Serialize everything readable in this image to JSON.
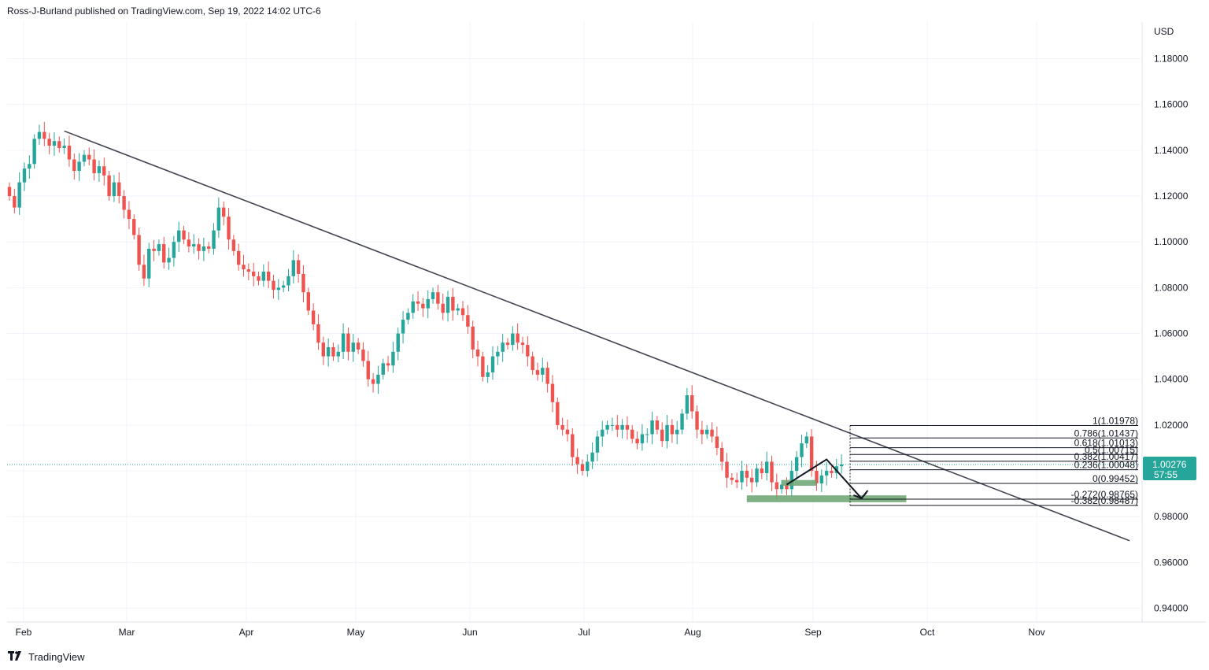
{
  "header": {
    "text": "Ross-J-Burland published on TradingView.com, Sep 19, 2022 14:02 UTC-6"
  },
  "footer": {
    "brand": "TradingView",
    "logo": "tv-logo-icon"
  },
  "chart_data": {
    "type": "candlestick",
    "currency": "USD",
    "y_ticks": [
      "1.18000",
      "1.16000",
      "1.14000",
      "1.12000",
      "1.10000",
      "1.08000",
      "1.06000",
      "1.04000",
      "1.02000",
      "1.00000",
      "0.98000",
      "0.96000",
      "0.94000"
    ],
    "ylim": [
      0.934,
      1.196
    ],
    "x_ticks": [
      "Feb",
      "Mar",
      "Apr",
      "May",
      "Jun",
      "Jul",
      "Aug",
      "Sep",
      "Oct",
      "Nov"
    ],
    "last_price": "1.00276",
    "countdown": "57:55",
    "colors": {
      "up": "#26a69a",
      "down": "#ef5350",
      "trendline": "#434651",
      "zone": "#6aa36f",
      "price_line": "#26a69a"
    },
    "closes": [
      1.12,
      1.115,
      1.126,
      1.132,
      1.134,
      1.145,
      1.148,
      1.145,
      1.142,
      1.144,
      1.141,
      1.142,
      1.136,
      1.131,
      1.135,
      1.138,
      1.136,
      1.13,
      1.133,
      1.129,
      1.12,
      1.126,
      1.12,
      1.114,
      1.11,
      1.103,
      1.09,
      1.084,
      1.097,
      1.096,
      1.099,
      1.091,
      1.093,
      1.1,
      1.105,
      1.101,
      1.098,
      1.099,
      1.096,
      1.098,
      1.097,
      1.105,
      1.115,
      1.111,
      1.101,
      1.096,
      1.09,
      1.088,
      1.087,
      1.085,
      1.083,
      1.087,
      1.083,
      1.079,
      1.08,
      1.081,
      1.085,
      1.092,
      1.086,
      1.078,
      1.07,
      1.064,
      1.056,
      1.05,
      1.054,
      1.05,
      1.052,
      1.06,
      1.052,
      1.056,
      1.053,
      1.048,
      1.04,
      1.038,
      1.042,
      1.047,
      1.046,
      1.052,
      1.06,
      1.066,
      1.069,
      1.074,
      1.073,
      1.071,
      1.075,
      1.078,
      1.073,
      1.069,
      1.076,
      1.07,
      1.071,
      1.068,
      1.063,
      1.053,
      1.05,
      1.041,
      1.043,
      1.05,
      1.052,
      1.056,
      1.055,
      1.06,
      1.056,
      1.055,
      1.05,
      1.044,
      1.042,
      1.045,
      1.038,
      1.03,
      1.02,
      1.018,
      1.016,
      1.006,
      1.003,
      1.0,
      1.004,
      1.008,
      1.015,
      1.018,
      1.02,
      1.02,
      1.018,
      1.02,
      1.018,
      1.014,
      1.012,
      1.016,
      1.016,
      1.022,
      1.018,
      1.013,
      1.02,
      1.016,
      1.018,
      1.025,
      1.033,
      1.026,
      1.018,
      1.016,
      1.018,
      1.015,
      1.01,
      1.004,
      0.997,
      0.996,
      0.995,
      1.0,
      0.997,
      0.995,
      1.001,
      0.999,
      1.004,
      0.995,
      0.992,
      0.994,
      0.992,
      1.0,
      1.006,
      1.012,
      1.015,
      1.0,
      0.9945,
      0.998,
      1.0,
      0.999,
      1.002,
      1.0028
    ],
    "trendline": {
      "from": {
        "i": 11,
        "y": 1.1484
      },
      "to_extended_x": "Nov+",
      "to_y": 0.9695
    },
    "fibonacci": [
      {
        "label": "1(1.01978)",
        "level": 1.01978
      },
      {
        "label": "0.786(1.01437)",
        "level": 1.01437
      },
      {
        "label": "0.618(1.01013)",
        "level": 1.01013
      },
      {
        "label": "0.5(1.00715)",
        "level": 1.00715
      },
      {
        "label": "0.382(1.00417)",
        "level": 1.00417
      },
      {
        "label": "0.236(1.00048)",
        "level": 1.00048
      },
      {
        "label": "0(0.99452)",
        "level": 0.99452
      },
      {
        "label": "-0.272(0.98765)",
        "level": 0.98765
      },
      {
        "label": "-0.382(0.98487)",
        "level": 0.98487
      }
    ],
    "zones": [
      {
        "from_i": 155,
        "to_i": 162,
        "y1": 0.9935,
        "y2": 0.996
      },
      {
        "from_i": 148,
        "to_i": 180,
        "y1": 0.9863,
        "y2": 0.9893
      }
    ],
    "projection": [
      {
        "i": 156,
        "y": 0.994
      },
      {
        "i": 164,
        "y": 1.005
      },
      {
        "i": 171,
        "y": 0.988
      },
      {
        "i": 172,
        "y": 0.9905
      }
    ]
  }
}
